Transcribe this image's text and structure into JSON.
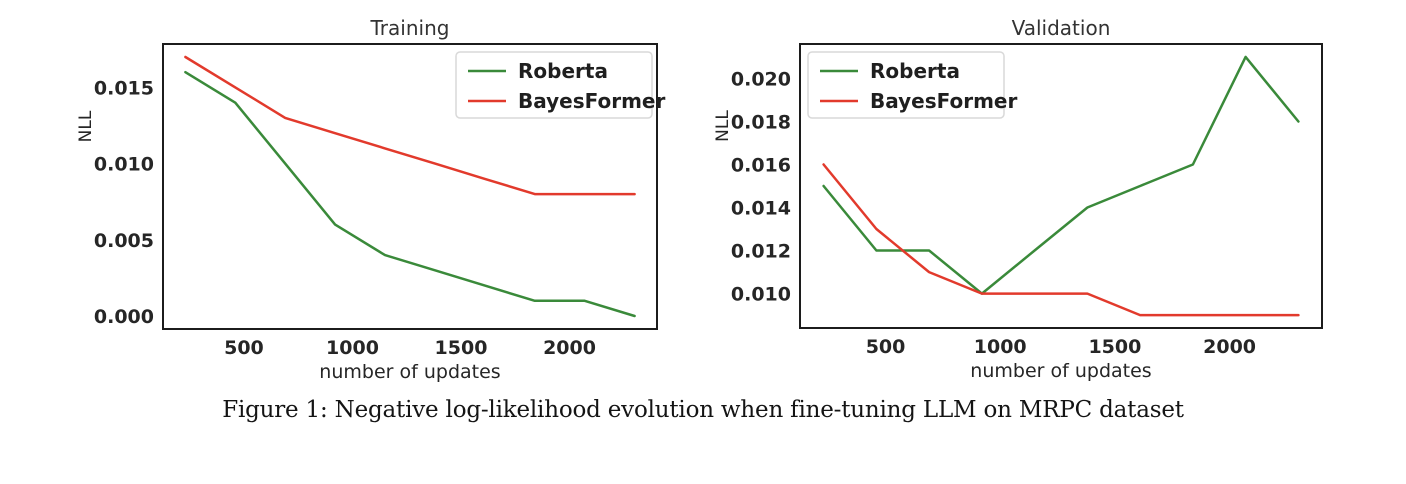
{
  "caption": "Figure 1: Negative log-likelihood evolution when fine-tuning LLM on MRPC dataset",
  "colors": {
    "roberta": "#3a8a3a",
    "bayesformer": "#e23a2c",
    "axis_border": "#1c1c1c",
    "tick_text": "#262626",
    "title_text": "#333333",
    "legend_border": "#d9d9d9",
    "legend_bg": "#ffffff",
    "background": "#ffffff"
  },
  "chart_data": [
    {
      "type": "line",
      "title": "Training",
      "xlabel": "number of updates",
      "ylabel": "NLL",
      "x": [
        230,
        460,
        690,
        920,
        1150,
        1380,
        1610,
        1840,
        2070,
        2300
      ],
      "series": [
        {
          "name": "Roberta",
          "color_key": "roberta",
          "values": [
            0.016,
            0.014,
            0.01,
            0.006,
            0.004,
            0.003,
            0.002,
            0.001,
            0.001,
            0.0
          ]
        },
        {
          "name": "BayesFormer",
          "color_key": "bayesformer",
          "values": [
            0.017,
            0.015,
            0.013,
            0.012,
            0.011,
            0.01,
            0.009,
            0.008,
            0.008,
            0.008
          ]
        }
      ],
      "xlim": [
        127,
        2403
      ],
      "ylim": [
        -0.00085,
        0.01785
      ],
      "xticks": [
        500,
        1000,
        1500,
        2000
      ],
      "xtick_labels": [
        "500",
        "1000",
        "1500",
        "2000"
      ],
      "yticks": [
        0.0,
        0.005,
        0.01,
        0.015
      ],
      "ytick_labels": [
        "0.000",
        "0.005",
        "0.010",
        "0.015"
      ],
      "grid": false,
      "legend": {
        "position": "upper-right",
        "entries": [
          "Roberta",
          "BayesFormer"
        ]
      }
    },
    {
      "type": "line",
      "title": "Validation",
      "xlabel": "number of updates",
      "ylabel": "NLL",
      "x": [
        230,
        460,
        690,
        920,
        1150,
        1380,
        1610,
        1840,
        2070,
        2300
      ],
      "series": [
        {
          "name": "Roberta",
          "color_key": "roberta",
          "values": [
            0.015,
            0.012,
            0.012,
            0.01,
            0.012,
            0.014,
            0.015,
            0.016,
            0.021,
            0.018
          ]
        },
        {
          "name": "BayesFormer",
          "color_key": "bayesformer",
          "values": [
            0.016,
            0.013,
            0.011,
            0.01,
            0.01,
            0.01,
            0.009,
            0.009,
            0.009,
            0.009
          ]
        }
      ],
      "xlim": [
        127,
        2403
      ],
      "ylim": [
        0.0084,
        0.0216
      ],
      "xticks": [
        500,
        1000,
        1500,
        2000
      ],
      "xtick_labels": [
        "500",
        "1000",
        "1500",
        "2000"
      ],
      "yticks": [
        0.01,
        0.012,
        0.014,
        0.016,
        0.018,
        0.02
      ],
      "ytick_labels": [
        "0.010",
        "0.012",
        "0.014",
        "0.016",
        "0.018",
        "0.020"
      ],
      "grid": false,
      "legend": {
        "position": "upper-left",
        "entries": [
          "Roberta",
          "BayesFormer"
        ]
      }
    }
  ]
}
